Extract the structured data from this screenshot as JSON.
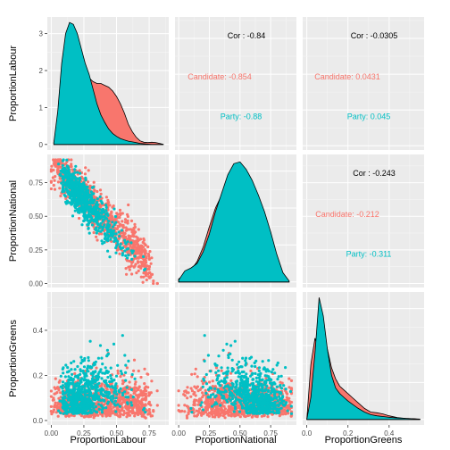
{
  "chart_data": {
    "type": "scatter",
    "title": "",
    "variables": [
      "ProportionLabour",
      "ProportionNational",
      "ProportionGreens"
    ],
    "groups": [
      {
        "name": "Candidate",
        "color": "#F8766D"
      },
      {
        "name": "Party",
        "color": "#00BFC4"
      }
    ],
    "axes": {
      "ProportionLabour": {
        "range": [
          -0.03,
          0.9
        ],
        "ticks": [
          "0.00",
          "0.25",
          "0.50",
          "0.75"
        ],
        "tick_values": [
          0,
          0.25,
          0.5,
          0.75
        ]
      },
      "ProportionNational": {
        "range": [
          -0.03,
          0.96
        ],
        "ticks": [
          "0.00",
          "0.25",
          "0.50",
          "0.75"
        ],
        "tick_values": [
          0,
          0.25,
          0.5,
          0.75
        ]
      },
      "ProportionGreens": {
        "range": [
          -0.02,
          0.57
        ],
        "ticks": [
          "0.0",
          "0.2",
          "0.4"
        ],
        "tick_values": [
          0,
          0.2,
          0.4
        ]
      }
    },
    "density_y_range": [
      -0.15,
      3.45
    ],
    "density_y_ticks": [
      "0",
      "1",
      "2",
      "3"
    ],
    "density_y_tick_values": [
      0,
      1,
      2,
      3
    ],
    "correlations": [
      {
        "pair": [
          "ProportionLabour",
          "ProportionNational"
        ],
        "overall": "Cor : -0.84",
        "candidate": "Candidate: -0.854",
        "party": "Party: -0.88"
      },
      {
        "pair": [
          "ProportionLabour",
          "ProportionGreens"
        ],
        "overall": "Cor : -0.0305",
        "candidate": "Candidate: 0.0431",
        "party": "Party: 0.045"
      },
      {
        "pair": [
          "ProportionNational",
          "ProportionGreens"
        ],
        "overall": "Cor : -0.243",
        "candidate": "Candidate: -0.212",
        "party": "Party: -0.311"
      }
    ],
    "densities": {
      "ProportionLabour": {
        "x": [
          0.02,
          0.05,
          0.08,
          0.11,
          0.14,
          0.17,
          0.2,
          0.23,
          0.26,
          0.29,
          0.32,
          0.35,
          0.38,
          0.41,
          0.44,
          0.47,
          0.5,
          0.53,
          0.56,
          0.59,
          0.62,
          0.65,
          0.68,
          0.71,
          0.74,
          0.77,
          0.8,
          0.83,
          0.86
        ],
        "Candidate": [
          0.05,
          0.6,
          1.4,
          2.1,
          2.6,
          2.75,
          2.6,
          2.3,
          2.0,
          1.8,
          1.7,
          1.65,
          1.65,
          1.6,
          1.55,
          1.45,
          1.3,
          1.1,
          0.85,
          0.55,
          0.35,
          0.2,
          0.1,
          0.06,
          0.05,
          0.06,
          0.05,
          0.03,
          0.0
        ],
        "Party": [
          0.05,
          0.9,
          2.2,
          3.0,
          3.3,
          3.25,
          3.0,
          2.6,
          2.2,
          1.9,
          1.5,
          1.1,
          0.8,
          0.6,
          0.42,
          0.3,
          0.22,
          0.16,
          0.12,
          0.09,
          0.07,
          0.05,
          0.03,
          0.02,
          0.01,
          0.0,
          0.0,
          0.0,
          0.0
        ]
      },
      "ProportionNational": {
        "x": [
          0.0,
          0.05,
          0.1,
          0.15,
          0.2,
          0.25,
          0.3,
          0.35,
          0.4,
          0.45,
          0.5,
          0.55,
          0.6,
          0.65,
          0.7,
          0.75,
          0.8,
          0.85,
          0.9
        ],
        "Candidate": [
          0.08,
          0.2,
          0.32,
          0.55,
          0.95,
          1.5,
          2.0,
          2.35,
          2.55,
          2.75,
          2.9,
          2.8,
          2.5,
          2.05,
          1.55,
          1.0,
          0.45,
          0.12,
          0.02
        ],
        "Party": [
          0.05,
          0.3,
          0.38,
          0.5,
          0.82,
          1.3,
          1.9,
          2.4,
          2.9,
          3.2,
          3.25,
          3.05,
          2.75,
          2.35,
          1.9,
          1.35,
          0.75,
          0.25,
          0.03
        ]
      },
      "ProportionGreens": {
        "x": [
          0.0,
          0.02,
          0.04,
          0.06,
          0.08,
          0.1,
          0.12,
          0.14,
          0.16,
          0.18,
          0.2,
          0.22,
          0.25,
          0.28,
          0.31,
          0.34,
          0.37,
          0.4,
          0.44,
          0.48,
          0.52,
          0.55
        ],
        "Candidate": [
          0.0,
          1.5,
          2.2,
          1.8,
          2.3,
          1.9,
          1.4,
          1.1,
          0.9,
          0.8,
          0.7,
          0.6,
          0.45,
          0.3,
          0.2,
          0.18,
          0.15,
          0.1,
          0.05,
          0.03,
          0.02,
          0.01
        ],
        "Party": [
          0.0,
          0.6,
          1.8,
          3.3,
          2.8,
          1.9,
          1.2,
          0.85,
          0.7,
          0.6,
          0.5,
          0.42,
          0.3,
          0.2,
          0.13,
          0.1,
          0.08,
          0.06,
          0.04,
          0.03,
          0.02,
          0.0
        ]
      }
    }
  }
}
